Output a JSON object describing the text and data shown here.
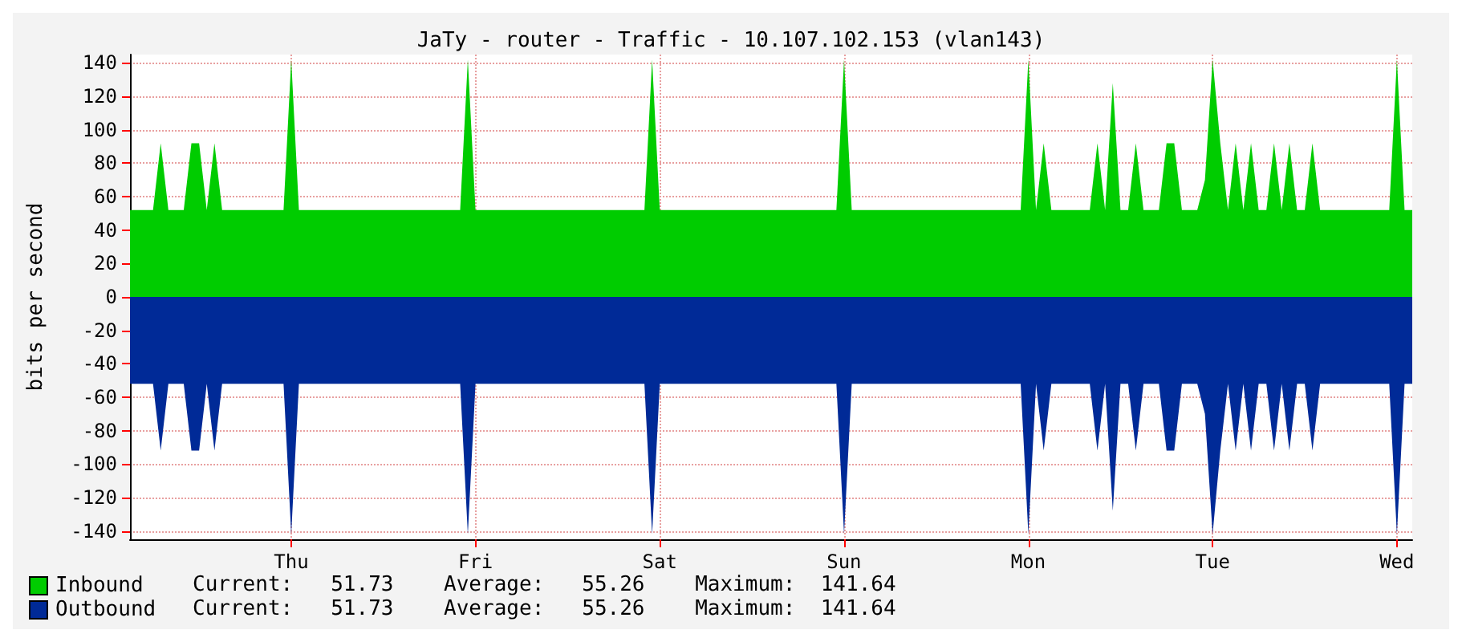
{
  "chart_data": {
    "type": "area",
    "title": "JaTy - router - Traffic - 10.107.102.153 (vlan143)",
    "ylabel": "bits per second",
    "categories": [
      null,
      null,
      null,
      null,
      null,
      null,
      null,
      null,
      null,
      null,
      null,
      null,
      null,
      null,
      null,
      null,
      null,
      null,
      null,
      null,
      null,
      "Thu",
      null,
      null,
      null,
      null,
      null,
      null,
      null,
      null,
      null,
      null,
      null,
      null,
      null,
      null,
      null,
      null,
      null,
      null,
      null,
      null,
      null,
      null,
      null,
      "Fri",
      null,
      null,
      null,
      null,
      null,
      null,
      null,
      null,
      null,
      null,
      null,
      null,
      null,
      null,
      null,
      null,
      null,
      null,
      null,
      null,
      null,
      null,
      null,
      "Sat",
      null,
      null,
      null,
      null,
      null,
      null,
      null,
      null,
      null,
      null,
      null,
      null,
      null,
      null,
      null,
      null,
      null,
      null,
      null,
      null,
      null,
      null,
      null,
      "Sun",
      null,
      null,
      null,
      null,
      null,
      null,
      null,
      null,
      null,
      null,
      null,
      null,
      null,
      null,
      null,
      null,
      null,
      null,
      null,
      null,
      null,
      null,
      null,
      "Mon",
      null,
      null,
      null,
      null,
      null,
      null,
      null,
      null,
      null,
      null,
      null,
      null,
      null,
      null,
      null,
      null,
      null,
      null,
      null,
      null,
      null,
      null,
      null,
      "Tue",
      null,
      null,
      null,
      null,
      null,
      null,
      null,
      null,
      null,
      null,
      null,
      null,
      null,
      null,
      null,
      null,
      null,
      null,
      null,
      null,
      null,
      null,
      null,
      "Wed",
      null,
      null
    ],
    "series": [
      {
        "name": "Inbound",
        "color": "#00cc00",
        "values": [
          52,
          52,
          52,
          52,
          92,
          52,
          52,
          52,
          92,
          92,
          52,
          92,
          52,
          52,
          52,
          52,
          52,
          52,
          52,
          52,
          52,
          142,
          52,
          52,
          52,
          52,
          52,
          52,
          52,
          52,
          52,
          52,
          52,
          52,
          52,
          52,
          52,
          52,
          52,
          52,
          52,
          52,
          52,
          52,
          142,
          52,
          52,
          52,
          52,
          52,
          52,
          52,
          52,
          52,
          52,
          52,
          52,
          52,
          52,
          52,
          52,
          52,
          52,
          52,
          52,
          52,
          52,
          52,
          142,
          52,
          52,
          52,
          52,
          52,
          52,
          52,
          52,
          52,
          52,
          52,
          52,
          52,
          52,
          52,
          52,
          52,
          52,
          52,
          52,
          52,
          52,
          52,
          52,
          142,
          52,
          52,
          52,
          52,
          52,
          52,
          52,
          52,
          52,
          52,
          52,
          52,
          52,
          52,
          52,
          52,
          52,
          52,
          52,
          52,
          52,
          52,
          52,
          142,
          52,
          92,
          52,
          52,
          52,
          52,
          52,
          52,
          92,
          52,
          128,
          52,
          52,
          92,
          52,
          52,
          52,
          92,
          92,
          52,
          52,
          52,
          70,
          142,
          92,
          52,
          92,
          52,
          92,
          52,
          52,
          92,
          52,
          92,
          52,
          52,
          92,
          52,
          52,
          52,
          52,
          52,
          52,
          52,
          52,
          52,
          52,
          142,
          52,
          52
        ]
      },
      {
        "name": "Outbound",
        "color": "#002a97",
        "values": [
          -52,
          -52,
          -52,
          -52,
          -92,
          -52,
          -52,
          -52,
          -92,
          -92,
          -52,
          -92,
          -52,
          -52,
          -52,
          -52,
          -52,
          -52,
          -52,
          -52,
          -52,
          -142,
          -52,
          -52,
          -52,
          -52,
          -52,
          -52,
          -52,
          -52,
          -52,
          -52,
          -52,
          -52,
          -52,
          -52,
          -52,
          -52,
          -52,
          -52,
          -52,
          -52,
          -52,
          -52,
          -142,
          -52,
          -52,
          -52,
          -52,
          -52,
          -52,
          -52,
          -52,
          -52,
          -52,
          -52,
          -52,
          -52,
          -52,
          -52,
          -52,
          -52,
          -52,
          -52,
          -52,
          -52,
          -52,
          -52,
          -142,
          -52,
          -52,
          -52,
          -52,
          -52,
          -52,
          -52,
          -52,
          -52,
          -52,
          -52,
          -52,
          -52,
          -52,
          -52,
          -52,
          -52,
          -52,
          -52,
          -52,
          -52,
          -52,
          -52,
          -52,
          -142,
          -52,
          -52,
          -52,
          -52,
          -52,
          -52,
          -52,
          -52,
          -52,
          -52,
          -52,
          -52,
          -52,
          -52,
          -52,
          -52,
          -52,
          -52,
          -52,
          -52,
          -52,
          -52,
          -52,
          -142,
          -52,
          -92,
          -52,
          -52,
          -52,
          -52,
          -52,
          -52,
          -92,
          -52,
          -128,
          -52,
          -52,
          -92,
          -52,
          -52,
          -52,
          -92,
          -92,
          -52,
          -52,
          -52,
          -70,
          -142,
          -92,
          -52,
          -92,
          -52,
          -92,
          -52,
          -52,
          -92,
          -52,
          -92,
          -52,
          -52,
          -92,
          -52,
          -52,
          -52,
          -52,
          -52,
          -52,
          -52,
          -52,
          -52,
          -52,
          -142,
          -52,
          -52
        ]
      }
    ],
    "ylim": [
      -145,
      145
    ],
    "yticks": [
      -140,
      -120,
      -100,
      -80,
      -60,
      -40,
      -20,
      0,
      20,
      40,
      60,
      80,
      100,
      120,
      140
    ],
    "grid": true,
    "legend": "bottom left",
    "annotations": [
      "Current:   51.73    Average:   55.26    Maximum:  141.64",
      "Current:   51.73    Average:   55.26    Maximum:  141.64"
    ]
  }
}
